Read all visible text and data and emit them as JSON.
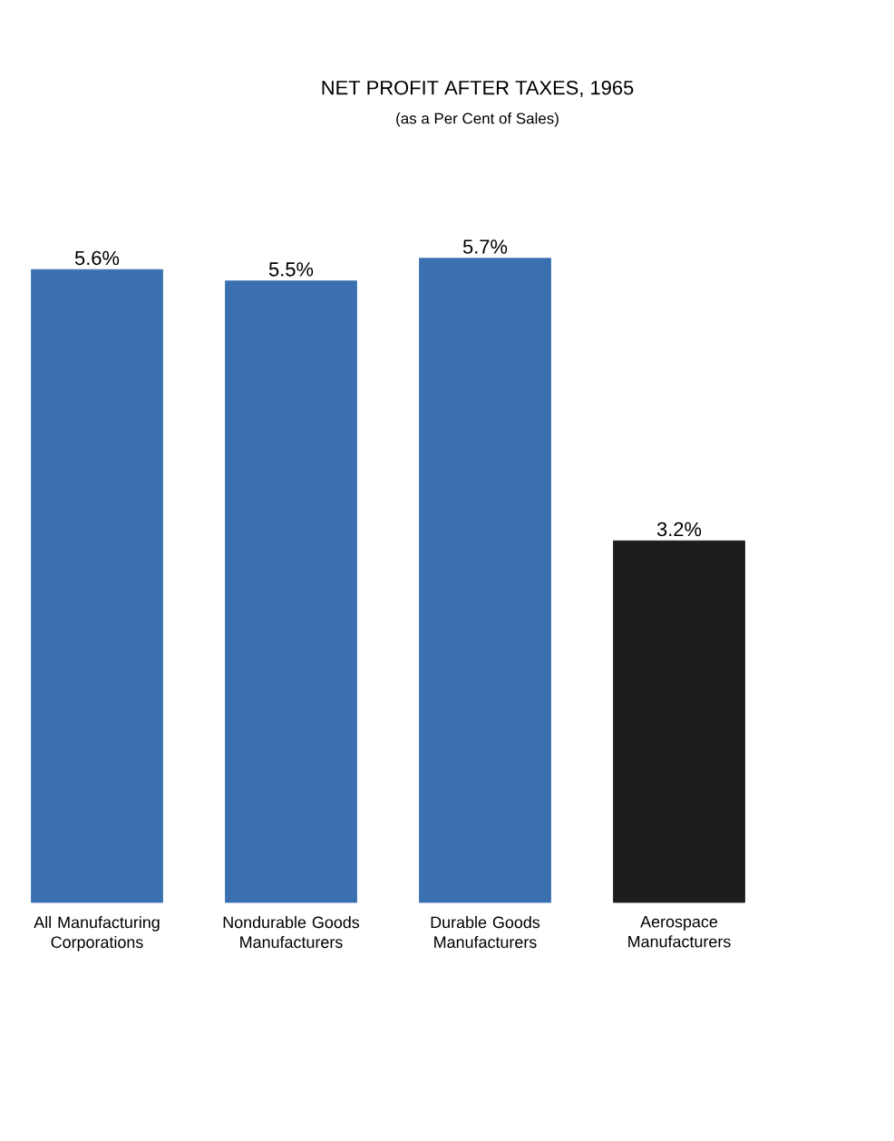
{
  "chart_data": {
    "type": "bar",
    "title": "NET PROFIT AFTER TAXES, 1965",
    "subtitle": "(as a Per Cent of Sales)",
    "categories": [
      "All Manufacturing Corporations",
      "Nondurable Goods Manufacturers",
      "Durable Goods Manufacturers",
      "Aerospace Manufacturers"
    ],
    "values": [
      5.6,
      5.5,
      5.7,
      3.2
    ],
    "value_labels": [
      "5.6%",
      "5.5%",
      "5.7%",
      "3.2%"
    ],
    "colors": [
      "#3a70b0",
      "#3a70b0",
      "#3a70b0",
      "#1c1c1e"
    ]
  }
}
